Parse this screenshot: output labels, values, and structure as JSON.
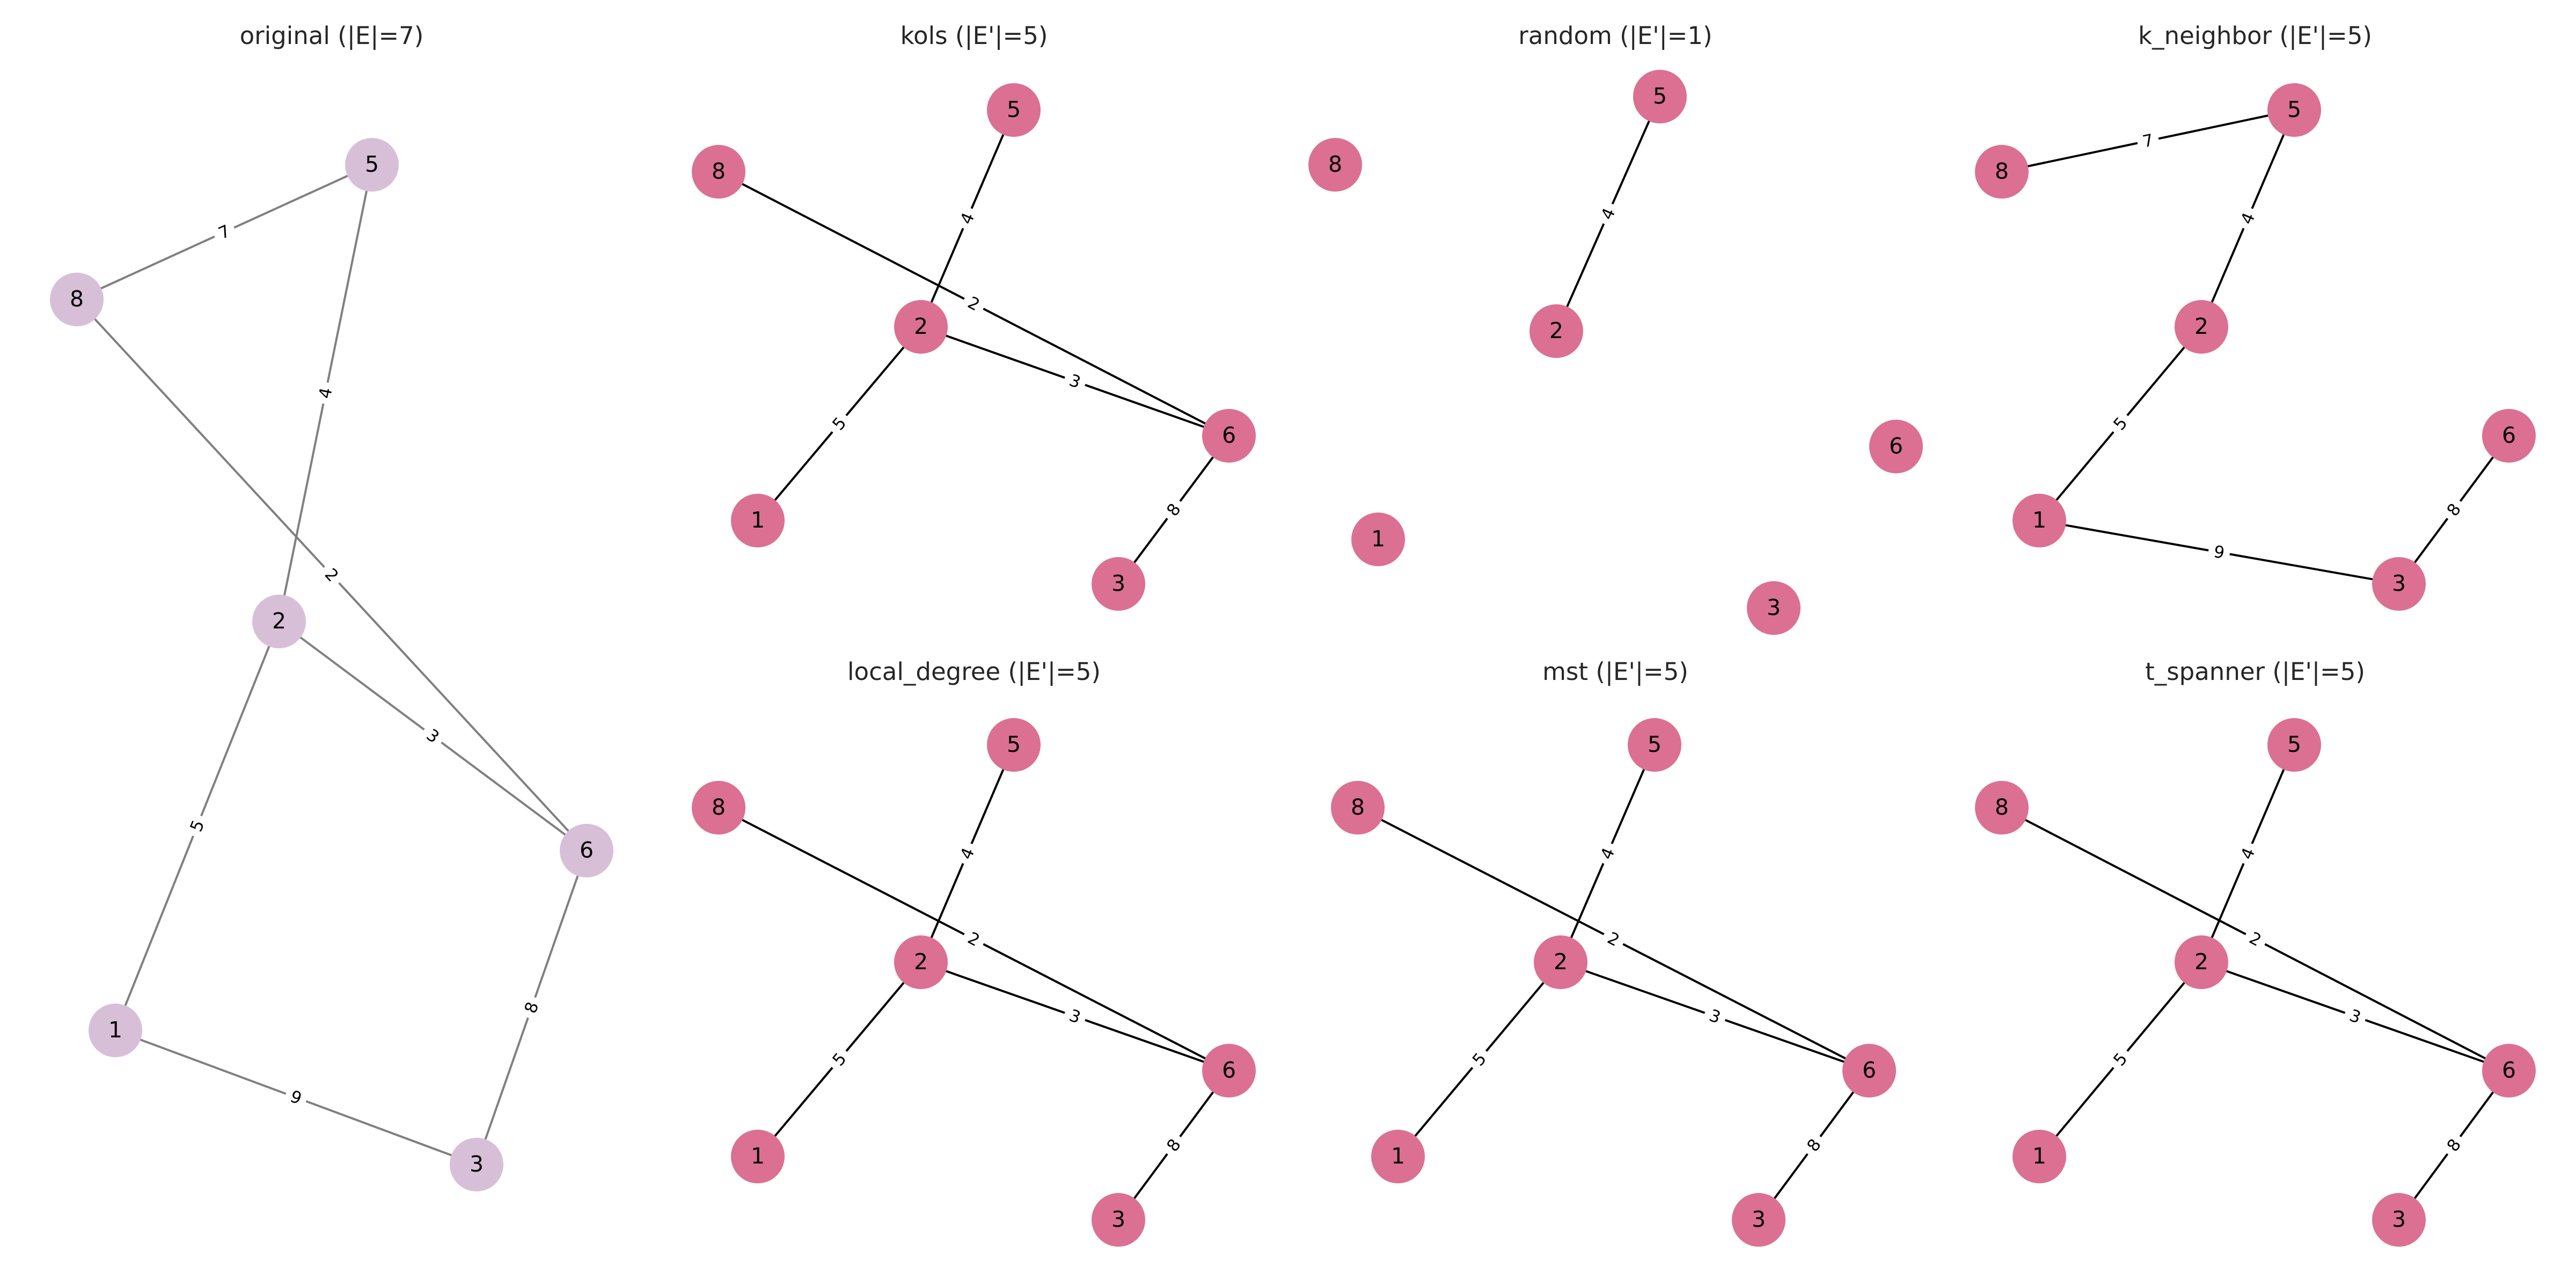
{
  "figure": {
    "colors": {
      "original_node": "#d8bfd8",
      "original_edge": "#808080",
      "subgraph_node": "#db7093",
      "subgraph_edge": "#000000"
    },
    "panels": [
      {
        "id": "original",
        "title": "original (|E|=7)",
        "style": "original",
        "nodes": [
          "5",
          "8",
          "2",
          "6",
          "1",
          "3"
        ],
        "edges": [
          {
            "u": "8",
            "v": "5",
            "w": "7"
          },
          {
            "u": "2",
            "v": "5",
            "w": "4"
          },
          {
            "u": "8",
            "v": "6",
            "w": "2"
          },
          {
            "u": "2",
            "v": "6",
            "w": "3"
          },
          {
            "u": "1",
            "v": "2",
            "w": "5"
          },
          {
            "u": "6",
            "v": "3",
            "w": "8"
          },
          {
            "u": "1",
            "v": "3",
            "w": "9"
          }
        ]
      },
      {
        "id": "kols",
        "title": "kols (|E'|=5)",
        "style": "subgraph",
        "nodes": [
          "5",
          "8",
          "2",
          "6",
          "1",
          "3"
        ],
        "edges": [
          {
            "u": "2",
            "v": "5",
            "w": "4"
          },
          {
            "u": "8",
            "v": "6",
            "w": "2"
          },
          {
            "u": "2",
            "v": "6",
            "w": "3"
          },
          {
            "u": "1",
            "v": "2",
            "w": "5"
          },
          {
            "u": "6",
            "v": "3",
            "w": "8"
          }
        ]
      },
      {
        "id": "random",
        "title": "random (|E'|=1)",
        "style": "subgraph",
        "nodes": [
          "5",
          "8",
          "2",
          "6",
          "1",
          "3"
        ],
        "edges": [
          {
            "u": "2",
            "v": "5",
            "w": "4"
          }
        ]
      },
      {
        "id": "k_neighbor",
        "title": "k_neighbor (|E'|=5)",
        "style": "subgraph",
        "nodes": [
          "5",
          "8",
          "2",
          "6",
          "1",
          "3"
        ],
        "edges": [
          {
            "u": "8",
            "v": "5",
            "w": "7"
          },
          {
            "u": "2",
            "v": "5",
            "w": "4"
          },
          {
            "u": "1",
            "v": "2",
            "w": "5"
          },
          {
            "u": "6",
            "v": "3",
            "w": "8"
          },
          {
            "u": "1",
            "v": "3",
            "w": "9"
          }
        ]
      },
      {
        "id": "local_degree",
        "title": "local_degree (|E'|=5)",
        "style": "subgraph",
        "nodes": [
          "5",
          "8",
          "2",
          "6",
          "1",
          "3"
        ],
        "edges": [
          {
            "u": "2",
            "v": "5",
            "w": "4"
          },
          {
            "u": "8",
            "v": "6",
            "w": "2"
          },
          {
            "u": "2",
            "v": "6",
            "w": "3"
          },
          {
            "u": "1",
            "v": "2",
            "w": "5"
          },
          {
            "u": "6",
            "v": "3",
            "w": "8"
          }
        ]
      },
      {
        "id": "mst",
        "title": "mst (|E'|=5)",
        "style": "subgraph",
        "nodes": [
          "5",
          "8",
          "2",
          "6",
          "1",
          "3"
        ],
        "edges": [
          {
            "u": "2",
            "v": "5",
            "w": "4"
          },
          {
            "u": "8",
            "v": "6",
            "w": "2"
          },
          {
            "u": "2",
            "v": "6",
            "w": "3"
          },
          {
            "u": "1",
            "v": "2",
            "w": "5"
          },
          {
            "u": "6",
            "v": "3",
            "w": "8"
          }
        ]
      },
      {
        "id": "t_spanner",
        "title": "t_spanner (|E'|=5)",
        "style": "subgraph",
        "nodes": [
          "5",
          "8",
          "2",
          "6",
          "1",
          "3"
        ],
        "edges": [
          {
            "u": "2",
            "v": "5",
            "w": "4"
          },
          {
            "u": "8",
            "v": "6",
            "w": "2"
          },
          {
            "u": "2",
            "v": "6",
            "w": "3"
          },
          {
            "u": "1",
            "v": "2",
            "w": "5"
          },
          {
            "u": "6",
            "v": "3",
            "w": "8"
          }
        ]
      }
    ]
  }
}
